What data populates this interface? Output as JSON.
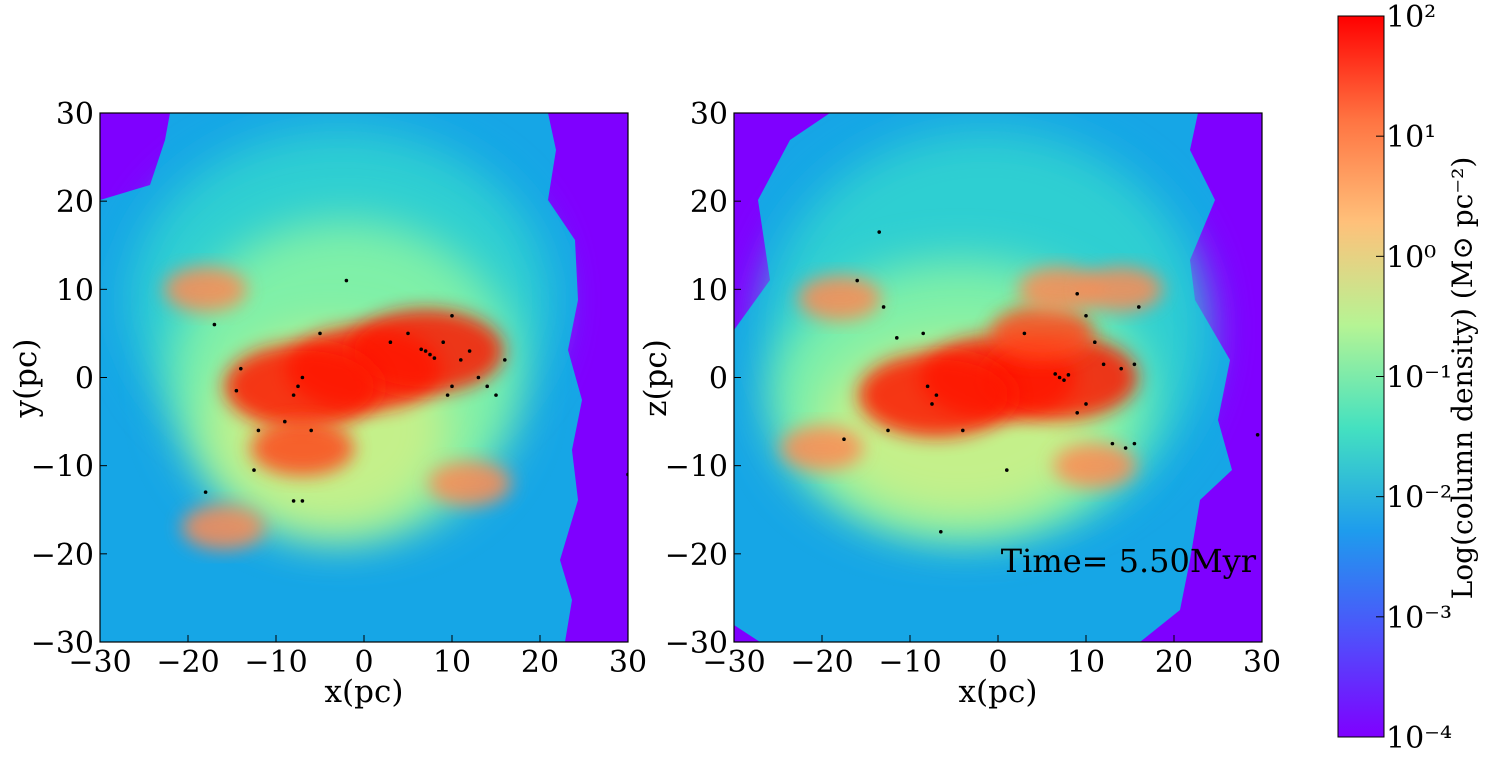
{
  "chart_data": [
    {
      "type": "heatmap",
      "title": "",
      "xlabel": "x(pc)",
      "ylabel": "y(pc)",
      "xlim": [
        -30,
        30
      ],
      "ylim": [
        -30,
        30
      ],
      "xticks": [
        "−30",
        "−20",
        "−10",
        "0",
        "10",
        "20",
        "30"
      ],
      "yticks": [
        "30",
        "20",
        "10",
        "0",
        "−10",
        "−20",
        "−30"
      ],
      "dense_regions": [
        {
          "x": 0,
          "y": 1,
          "level": 100
        },
        {
          "x": 7,
          "y": 3,
          "level": 100
        },
        {
          "x": -7,
          "y": -1,
          "level": 100
        },
        {
          "x": -7,
          "y": -8,
          "level": 10
        },
        {
          "x": 12,
          "y": -12,
          "level": 3
        },
        {
          "x": -16,
          "y": -17,
          "level": 3
        },
        {
          "x": -18,
          "y": 10,
          "level": 3
        }
      ],
      "sink_particles": [
        [
          7,
          3
        ],
        [
          7.5,
          2.6
        ],
        [
          6.5,
          3.2
        ],
        [
          8,
          2.2
        ],
        [
          -7.5,
          -1
        ],
        [
          -8,
          -2
        ],
        [
          -7,
          0
        ],
        [
          -2,
          11
        ],
        [
          -17,
          6
        ],
        [
          -14,
          1
        ],
        [
          -14.5,
          -1.5
        ],
        [
          -12,
          -6
        ],
        [
          -12.5,
          -10.5
        ],
        [
          -18,
          -13
        ],
        [
          -8,
          -14
        ],
        [
          -7,
          -14
        ],
        [
          9,
          4
        ],
        [
          10,
          7
        ],
        [
          11,
          2
        ],
        [
          12,
          3
        ],
        [
          13,
          0
        ],
        [
          14,
          -1
        ],
        [
          15,
          -2
        ],
        [
          16,
          2
        ],
        [
          10,
          -1
        ],
        [
          9.5,
          -2
        ],
        [
          5,
          5
        ],
        [
          3,
          4
        ],
        [
          -5,
          5
        ],
        [
          -9,
          -5
        ],
        [
          -6,
          -6
        ],
        [
          30,
          -11
        ]
      ]
    },
    {
      "type": "heatmap",
      "title": "",
      "xlabel": "x(pc)",
      "ylabel": "z(pc)",
      "xlim": [
        -30,
        30
      ],
      "ylim": [
        -30,
        30
      ],
      "xticks": [
        "−30",
        "−20",
        "−10",
        "0",
        "10",
        "20",
        "30"
      ],
      "yticks": [
        "30",
        "20",
        "10",
        "0",
        "−10",
        "−20",
        "−30"
      ],
      "dense_regions": [
        {
          "x": 0,
          "y": 0,
          "level": 100
        },
        {
          "x": 7,
          "y": 0,
          "level": 100
        },
        {
          "x": -7,
          "y": -2,
          "level": 100
        },
        {
          "x": 5,
          "y": 5,
          "level": 10
        },
        {
          "x": 7,
          "y": 10,
          "level": 3
        },
        {
          "x": 14,
          "y": 10,
          "level": 3
        },
        {
          "x": -18,
          "y": 9,
          "level": 3
        },
        {
          "x": -20,
          "y": -8,
          "level": 3
        },
        {
          "x": 11,
          "y": -10,
          "level": 3
        }
      ],
      "sink_particles": [
        [
          7,
          0
        ],
        [
          7.5,
          -0.3
        ],
        [
          6.5,
          0.4
        ],
        [
          8,
          0.3
        ],
        [
          -7,
          -2
        ],
        [
          -7.5,
          -3
        ],
        [
          -8,
          -1
        ],
        [
          -13.5,
          16.5
        ],
        [
          -16,
          11
        ],
        [
          -13,
          8
        ],
        [
          -11.5,
          4.5
        ],
        [
          -8.5,
          5
        ],
        [
          -12.5,
          -6
        ],
        [
          -17.5,
          -7
        ],
        [
          -6.5,
          -17.5
        ],
        [
          1,
          -10.5
        ],
        [
          9,
          9.5
        ],
        [
          10,
          7
        ],
        [
          11,
          4
        ],
        [
          12,
          1.5
        ],
        [
          14,
          1
        ],
        [
          16,
          8
        ],
        [
          15.5,
          1.5
        ],
        [
          13,
          -7.5
        ],
        [
          14.5,
          -8
        ],
        [
          15.5,
          -7.5
        ],
        [
          10,
          -3
        ],
        [
          9,
          -4
        ],
        [
          3,
          5
        ],
        [
          -4,
          -6
        ],
        [
          29.5,
          -6.5
        ]
      ],
      "annotation": "Time= 5.50Myr"
    }
  ],
  "colorbar": {
    "label": "Log(column density) (M⊙ pc⁻²)",
    "scale": "log",
    "range": [
      0.0001,
      100
    ],
    "ticks": [
      "10²",
      "10¹",
      "10⁰",
      "10⁻¹",
      "10⁻²",
      "10⁻³",
      "10⁻⁴"
    ],
    "colormap": [
      "#ff0000",
      "#ff7341",
      "#ffc07a",
      "#b6f494",
      "#44e1c0",
      "#1e9ced",
      "#4e52fb",
      "#7f00ff"
    ]
  }
}
